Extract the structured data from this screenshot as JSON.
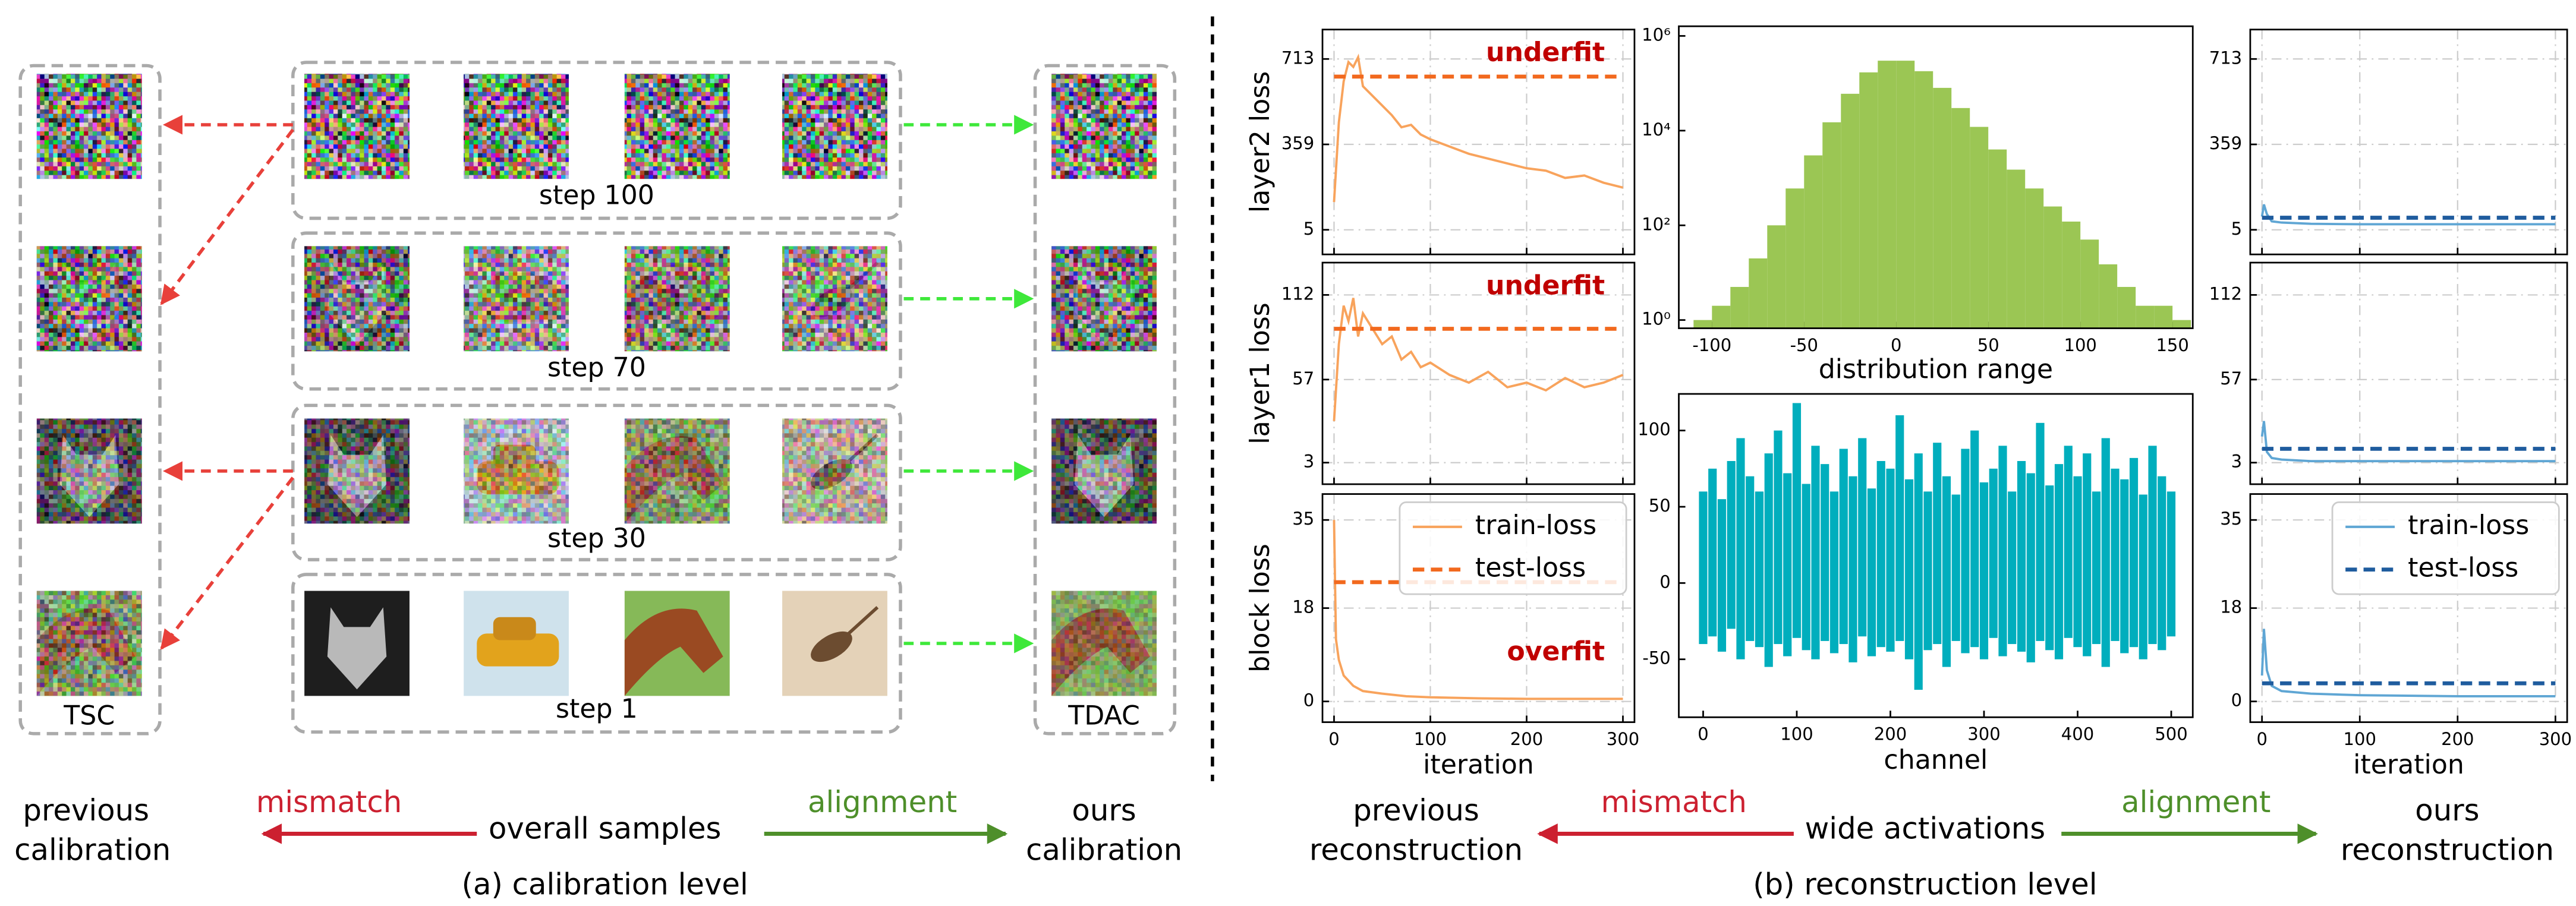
{
  "calibration": {
    "tsc_label": "TSC",
    "tdac_label": "TDAC",
    "steps": [
      "step 100",
      "step 70",
      "step 30",
      "step 1"
    ],
    "left_caption": [
      "previous",
      "calibration"
    ],
    "mismatch": "mismatch",
    "center": "overall samples",
    "alignment": "alignment",
    "right_caption": [
      "ours",
      "calibration"
    ],
    "caption": "(a) calibration level"
  },
  "reconstruction": {
    "left_caption": [
      "previous",
      "reconstruction"
    ],
    "mismatch": "mismatch",
    "center": "wide activations",
    "alignment": "alignment",
    "right_caption": [
      "ours",
      "reconstruction"
    ],
    "caption": "(b) reconstruction level"
  },
  "chart_data": [
    {
      "type": "line",
      "ylabel": "layer2 loss",
      "xlim": [
        -12,
        312
      ],
      "ylim": [
        -97,
        835
      ],
      "xticks": [
        0,
        100,
        200,
        300
      ],
      "yticks": [
        5,
        359,
        713
      ],
      "xticklabels": false,
      "grid": true,
      "annotation": {
        "text": "underfit",
        "color": "#c00000",
        "corner": "upper right"
      },
      "series": [
        {
          "name": "train-loss",
          "color": "#f8a35c",
          "style": "solid",
          "x": [
            0,
            5,
            10,
            15,
            20,
            25,
            30,
            40,
            50,
            60,
            70,
            80,
            90,
            100,
            120,
            140,
            160,
            180,
            200,
            220,
            240,
            260,
            280,
            300
          ],
          "values": [
            120,
            450,
            620,
            700,
            680,
            720,
            600,
            560,
            520,
            480,
            430,
            440,
            400,
            380,
            350,
            320,
            300,
            280,
            260,
            250,
            220,
            230,
            200,
            180
          ]
        },
        {
          "name": "test-loss",
          "color": "#f2691e",
          "style": "dashed",
          "x": [
            0,
            300
          ],
          "values": [
            640,
            640
          ]
        }
      ]
    },
    {
      "type": "line",
      "ylabel": "layer1 loss",
      "xlim": [
        -12,
        312
      ],
      "ylim": [
        -11,
        133
      ],
      "xticks": [
        0,
        100,
        200,
        300
      ],
      "yticks": [
        3,
        57,
        112
      ],
      "xticklabels": false,
      "grid": true,
      "annotation": {
        "text": "underfit",
        "color": "#c00000",
        "corner": "upper right"
      },
      "series": [
        {
          "name": "train-loss",
          "color": "#f8a35c",
          "style": "solid",
          "x": [
            0,
            5,
            10,
            15,
            20,
            25,
            30,
            40,
            50,
            60,
            70,
            80,
            90,
            100,
            120,
            140,
            160,
            180,
            200,
            220,
            240,
            260,
            280,
            300
          ],
          "values": [
            30,
            80,
            105,
            95,
            110,
            85,
            100,
            90,
            80,
            85,
            70,
            75,
            65,
            68,
            60,
            55,
            62,
            52,
            55,
            50,
            58,
            52,
            55,
            60
          ]
        },
        {
          "name": "test-loss",
          "color": "#f2691e",
          "style": "dashed",
          "x": [
            0,
            300
          ],
          "values": [
            90,
            90
          ]
        }
      ]
    },
    {
      "type": "line",
      "ylabel": "block loss",
      "xlabel": "iteration",
      "xlim": [
        -12,
        312
      ],
      "ylim": [
        -4,
        40
      ],
      "xticks": [
        0,
        100,
        200,
        300
      ],
      "yticks": [
        0,
        18,
        35
      ],
      "xticklabels": true,
      "grid": true,
      "legend": "upper right",
      "annotation": {
        "text": "overfit",
        "color": "#c00000",
        "corner": "lower right"
      },
      "series": [
        {
          "name": "train-loss",
          "color": "#f8a35c",
          "style": "solid",
          "x": [
            0,
            2,
            5,
            10,
            20,
            30,
            50,
            75,
            100,
            150,
            200,
            250,
            300
          ],
          "values": [
            35,
            12,
            8,
            5,
            3,
            2,
            1.5,
            1,
            0.8,
            0.6,
            0.5,
            0.5,
            0.5
          ]
        },
        {
          "name": "test-loss",
          "color": "#f2691e",
          "style": "dashed",
          "x": [
            0,
            300
          ],
          "values": [
            23,
            23
          ]
        }
      ]
    },
    {
      "type": "histogram",
      "xlabel": "distribution range",
      "color": "#9bc654",
      "log_y": true,
      "xlim": [
        -118,
        161
      ],
      "ylim": [
        0.67,
        1600000
      ],
      "xticks": [
        -100,
        -50,
        0,
        50,
        100,
        150
      ],
      "yticks": [
        {
          "value": 1,
          "label": "10⁰"
        },
        {
          "value": 100,
          "label": "10²"
        },
        {
          "value": 10000,
          "label": "10⁴"
        },
        {
          "value": 1000000,
          "label": "10⁶"
        }
      ],
      "bins": [
        -110,
        -100,
        -90,
        -80,
        -70,
        -60,
        -50,
        -40,
        -30,
        -20,
        -10,
        0,
        10,
        20,
        30,
        40,
        50,
        60,
        70,
        80,
        90,
        100,
        110,
        120,
        130,
        140,
        150,
        160
      ],
      "counts": [
        1,
        2,
        5,
        20,
        100,
        600,
        3000,
        15000,
        60000,
        170000,
        300000,
        300000,
        180000,
        80000,
        30000,
        12000,
        4000,
        1500,
        600,
        250,
        120,
        50,
        15,
        5,
        2,
        2,
        1
      ]
    },
    {
      "type": "range",
      "xlabel": "channel",
      "color": "#00aebd",
      "xlim": [
        -26,
        523
      ],
      "ylim": [
        -88,
        124
      ],
      "xticks": [
        0,
        100,
        200,
        300,
        400,
        500
      ],
      "yticks": [
        -50,
        0,
        50,
        100
      ],
      "x": [
        0,
        10,
        20,
        30,
        40,
        50,
        60,
        70,
        80,
        90,
        100,
        110,
        120,
        130,
        140,
        150,
        160,
        170,
        180,
        190,
        200,
        210,
        220,
        230,
        240,
        250,
        260,
        270,
        280,
        290,
        300,
        310,
        320,
        330,
        340,
        350,
        360,
        370,
        380,
        390,
        400,
        410,
        420,
        430,
        440,
        450,
        460,
        470,
        480,
        490,
        500
      ],
      "high": [
        60,
        75,
        55,
        80,
        95,
        70,
        60,
        85,
        100,
        72,
        118,
        65,
        90,
        78,
        60,
        88,
        70,
        95,
        62,
        80,
        75,
        110,
        68,
        85,
        60,
        92,
        70,
        58,
        88,
        100,
        66,
        75,
        90,
        60,
        80,
        72,
        105,
        64,
        78,
        90,
        70,
        85,
        60,
        95,
        75,
        68,
        82,
        58,
        90,
        70,
        60
      ],
      "low": [
        -40,
        -35,
        -45,
        -30,
        -50,
        -38,
        -42,
        -55,
        -40,
        -48,
        -36,
        -44,
        -50,
        -38,
        -46,
        -40,
        -52,
        -35,
        -48,
        -42,
        -45,
        -38,
        -50,
        -70,
        -44,
        -40,
        -55,
        -38,
        -46,
        -42,
        -50,
        -36,
        -48,
        -40,
        -45,
        -52,
        -38,
        -44,
        -50,
        -36,
        -42,
        -48,
        -40,
        -55,
        -38,
        -46,
        -42,
        -50,
        -40,
        -44,
        -35
      ]
    },
    {
      "type": "line",
      "xlim": [
        -12,
        312
      ],
      "ylim": [
        -97,
        835
      ],
      "xticks": [
        0,
        100,
        200,
        300
      ],
      "yticks": [
        5,
        359,
        713
      ],
      "xticklabels": false,
      "grid": true,
      "series": [
        {
          "name": "train-loss",
          "color": "#5fa6d4",
          "style": "solid",
          "x": [
            0,
            2,
            5,
            10,
            20,
            50,
            100,
            200,
            300
          ],
          "values": [
            60,
            110,
            70,
            40,
            35,
            30,
            28,
            28,
            28
          ]
        },
        {
          "name": "test-loss",
          "color": "#1f5c9e",
          "style": "dashed",
          "x": [
            0,
            300
          ],
          "values": [
            55,
            55
          ]
        }
      ]
    },
    {
      "type": "line",
      "xlim": [
        -12,
        312
      ],
      "ylim": [
        -11,
        133
      ],
      "xticks": [
        0,
        100,
        200,
        300
      ],
      "yticks": [
        3,
        57,
        112
      ],
      "xticklabels": false,
      "grid": true,
      "series": [
        {
          "name": "train-loss",
          "color": "#5fa6d4",
          "style": "solid",
          "x": [
            0,
            2,
            5,
            10,
            20,
            50,
            100,
            200,
            300
          ],
          "values": [
            20,
            30,
            10,
            6,
            5,
            4,
            4,
            4,
            4
          ]
        },
        {
          "name": "test-loss",
          "color": "#1f5c9e",
          "style": "dashed",
          "x": [
            0,
            300
          ],
          "values": [
            12,
            12
          ]
        }
      ]
    },
    {
      "type": "line",
      "xlabel": "iteration",
      "xlim": [
        -12,
        312
      ],
      "ylim": [
        -4,
        40
      ],
      "xticks": [
        0,
        100,
        200,
        300
      ],
      "yticks": [
        0,
        18,
        35
      ],
      "xticklabels": true,
      "grid": true,
      "legend": "upper right",
      "series": [
        {
          "name": "train-loss",
          "color": "#5fa6d4",
          "style": "solid",
          "x": [
            0,
            2,
            5,
            10,
            20,
            50,
            100,
            200,
            300
          ],
          "values": [
            5,
            14,
            6,
            3,
            2,
            1.5,
            1.2,
            1,
            1
          ]
        },
        {
          "name": "test-loss",
          "color": "#1f5c9e",
          "style": "dashed",
          "x": [
            0,
            300
          ],
          "values": [
            3.5,
            3.5
          ]
        }
      ]
    }
  ]
}
